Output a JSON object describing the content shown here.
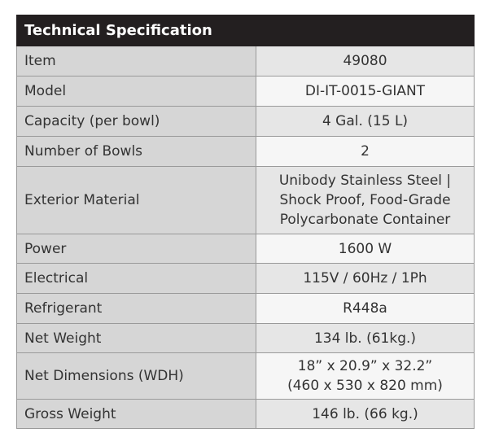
{
  "header": {
    "title": "Technical Specification"
  },
  "table": {
    "rows": [
      [
        "Item",
        "49080"
      ],
      [
        "Model",
        "DI-IT-0015-GIANT"
      ],
      [
        "Capacity (per bowl)",
        "4 Gal. (15 L)"
      ],
      [
        "Number of Bowls",
        "2"
      ],
      [
        "Exterior Material",
        [
          "Unibody Stainless Steel |",
          "Shock Proof, Food-Grade",
          "Polycarbonate Container"
        ]
      ],
      [
        "Power",
        "1600 W"
      ],
      [
        "Electrical",
        "115V / 60Hz / 1Ph"
      ],
      [
        "Refrigerant",
        "R448a"
      ],
      [
        "Net Weight",
        "134 lb. (61kg.)"
      ],
      [
        "Net Dimensions (WDH)",
        [
          "18” x 20.9” x 32.2”",
          "(460 x 530 x 820 mm)"
        ]
      ],
      [
        "Gross Weight",
        "146 lb. (66 kg.)"
      ]
    ]
  }
}
